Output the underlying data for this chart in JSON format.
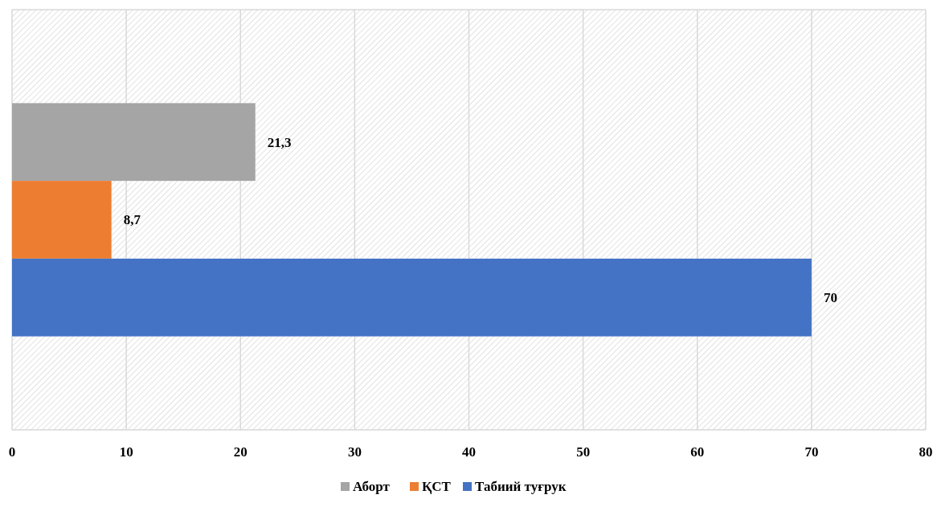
{
  "chart_data": {
    "type": "bar",
    "orientation": "horizontal",
    "categories": [
      null
    ],
    "series": [
      {
        "name": "Аборт",
        "color": "#a5a5a5",
        "values": [
          21.3
        ],
        "value_labels": [
          "21,3"
        ]
      },
      {
        "name": "ҚСТ",
        "color": "#ed7d31",
        "values": [
          8.7
        ],
        "value_labels": [
          "8,7"
        ]
      },
      {
        "name": "Табиий туғрук",
        "color": "#4472c4",
        "values": [
          70
        ],
        "value_labels": [
          "70"
        ]
      }
    ],
    "xlim": [
      0,
      80
    ],
    "xticks": [
      0,
      10,
      20,
      30,
      40,
      50,
      60,
      70,
      80
    ],
    "grid": "x",
    "legend": "bottom"
  }
}
